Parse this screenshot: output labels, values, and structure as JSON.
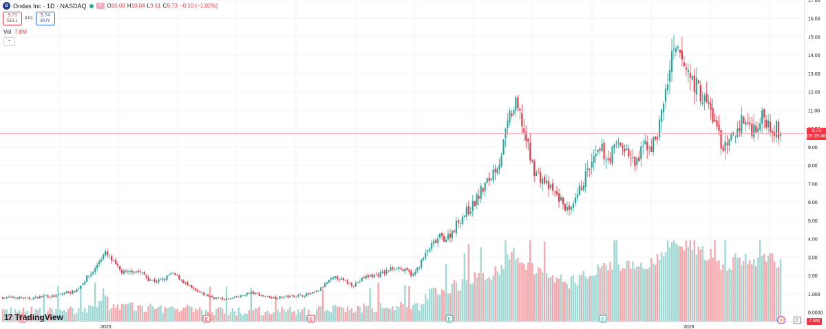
{
  "header": {
    "symbol_logo": "O",
    "title": "Ondas Inc · 1D · NASDAQ",
    "ohlc": [
      {
        "key": "O",
        "value": "10.03"
      },
      {
        "key": "H",
        "value": "10.04"
      },
      {
        "key": "L",
        "value": "9.61"
      },
      {
        "key": "C",
        "value": "9.73"
      },
      {
        "key": "",
        "value": "−0.10 (−1.02%)"
      }
    ]
  },
  "trade": {
    "sell_price": "9.73",
    "sell_label": "SELL",
    "spread": "0.01",
    "buy_price": "9.74",
    "buy_label": "BUY"
  },
  "volume_legend": {
    "label": "Vol",
    "value": "7.8M"
  },
  "collapse_icon": "chevron-up-icon",
  "brand": {
    "name": "TradingView"
  },
  "last_price": {
    "value": "9.73",
    "countdown": "06:15:46"
  },
  "volume_tag": "7.8M",
  "colors": {
    "up": "#26a69a",
    "down": "#f23645",
    "vol_up": "#9ed9d3",
    "vol_down": "#f7a6ab",
    "grid": "#f0f3fa",
    "last_line": "#f7a6ab",
    "event": "#ab47bc"
  },
  "chart_data": {
    "type": "candlestick",
    "symbol": "Ondas Inc",
    "interval": "1D",
    "exchange": "NASDAQ",
    "price_axis": {
      "min": -0.5,
      "max": 17.0,
      "ticks": [
        "17.00",
        "16.00",
        "15.00",
        "14.00",
        "13.00",
        "12.00",
        "11.00",
        "10.00",
        "9.00",
        "8.00",
        "7.00",
        "6.00",
        "5.00",
        "4.00",
        "3.00",
        "2.00",
        "1.000",
        "0.0000"
      ]
    },
    "time_axis_labels": [
      "2025",
      "2026"
    ],
    "volume_overlay": true,
    "close_path": [
      0.8,
      0.8,
      0.8,
      0.8,
      0.75,
      0.75,
      0.8,
      0.85,
      0.9,
      0.85,
      0.9,
      1.0,
      1.1,
      1.1,
      1.3,
      1.7,
      2.0,
      2.3,
      2.9,
      3.2,
      2.9,
      2.5,
      2.2,
      2.1,
      2.3,
      2.2,
      2.1,
      1.8,
      1.7,
      1.7,
      1.8,
      2.1,
      2.0,
      1.8,
      1.5,
      1.3,
      1.1,
      1.0,
      0.9,
      0.8,
      0.75,
      0.7,
      0.72,
      0.8,
      0.85,
      1.0,
      1.05,
      1.0,
      0.9,
      0.85,
      0.8,
      0.8,
      0.85,
      0.85,
      0.9,
      0.9,
      0.95,
      1.0,
      1.1,
      1.3,
      1.6,
      1.8,
      1.9,
      1.7,
      1.6,
      1.5,
      1.7,
      1.9,
      2.0,
      2.0,
      2.1,
      2.2,
      2.4,
      2.5,
      2.3,
      2.2,
      2.0,
      2.5,
      3.0,
      3.5,
      3.8,
      4.1,
      4.0,
      4.3,
      4.8,
      5.2,
      5.5,
      5.8,
      6.3,
      6.8,
      7.2,
      7.8,
      8.3,
      9.5,
      10.8,
      11.2,
      10.5,
      9.2,
      8.0,
      7.5,
      7.2,
      6.8,
      6.5,
      6.2,
      5.8,
      5.3,
      6.0,
      6.8,
      7.5,
      8.0,
      8.5,
      8.8,
      8.3,
      8.8,
      9.2,
      9.0,
      8.5,
      8.0,
      8.5,
      9.2,
      9.0,
      9.5,
      10.8,
      12.5,
      13.9,
      14.0,
      13.5,
      13.0,
      12.5,
      12.0,
      11.5,
      11.0,
      10.2,
      9.2,
      8.8,
      9.5,
      10.0,
      10.5,
      10.2,
      10.0,
      10.4,
      10.6,
      10.3,
      10.0,
      9.73
    ],
    "volume_scale": {
      "max_m": 40
    }
  },
  "events": {
    "earnings_label": "E",
    "split_label": "⚡"
  }
}
